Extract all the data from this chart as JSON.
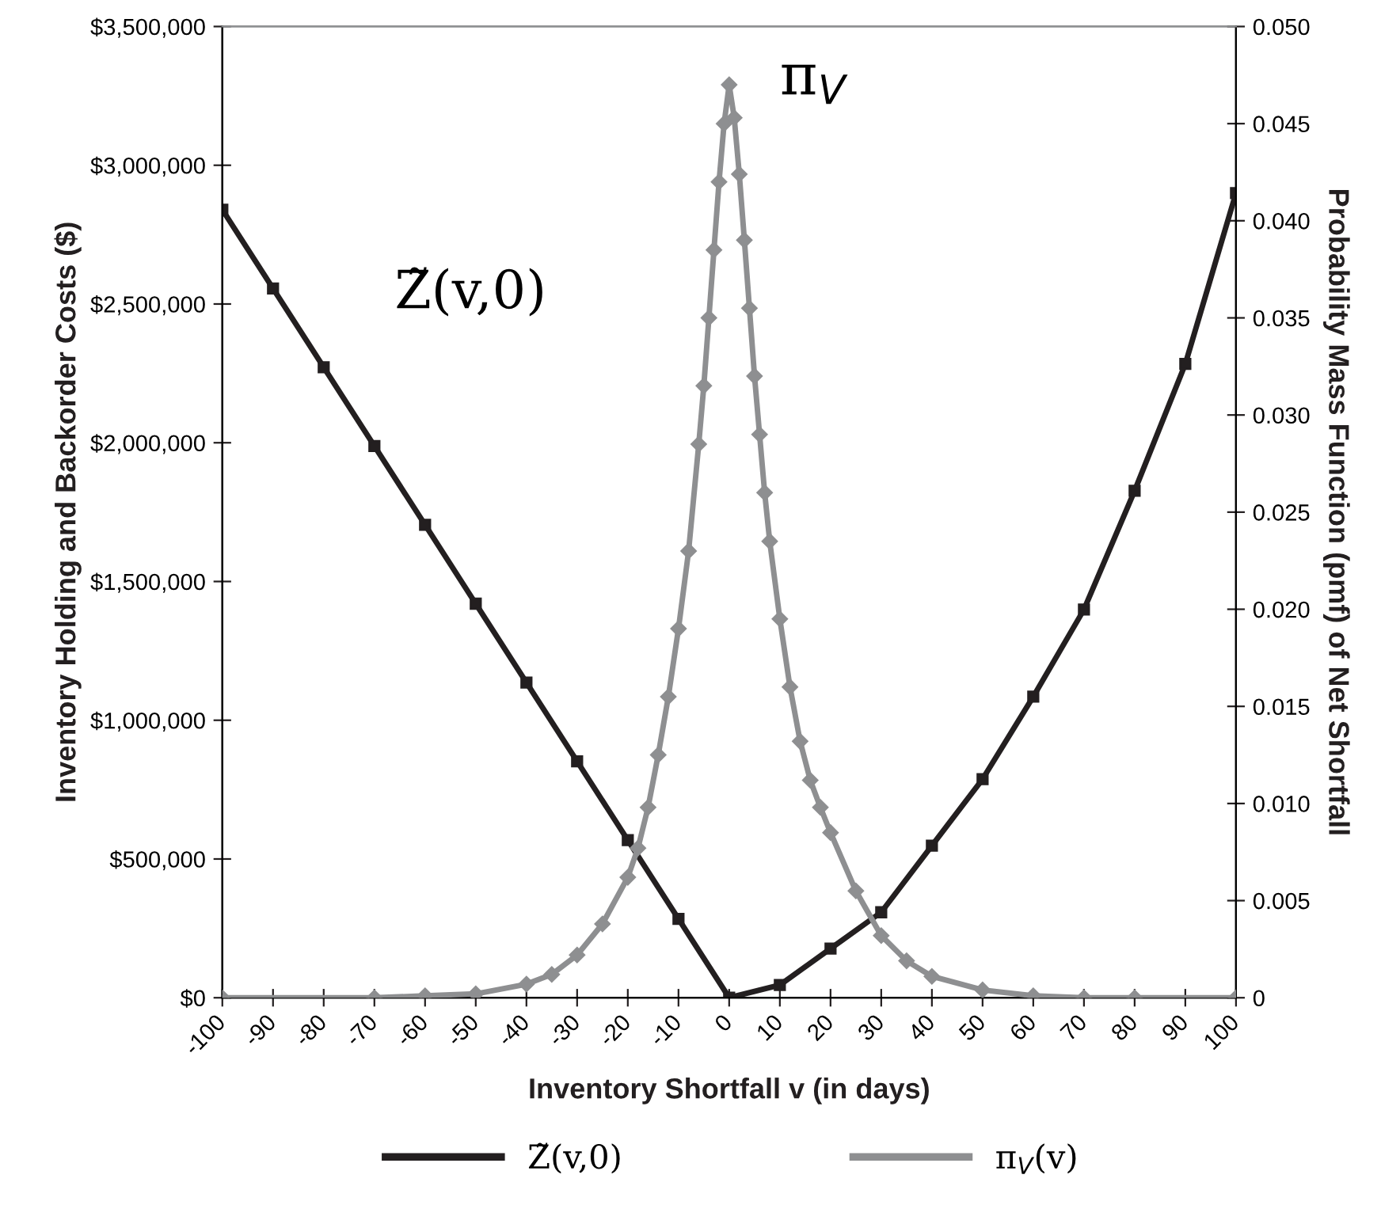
{
  "chart_data": {
    "type": "line",
    "xlabel": "Inventory Shortfall v (in days)",
    "ylabel": "Inventory Holding and Backorder Costs ($)",
    "y2label": "Probability Mass Function (pmf) of Net Shortfall",
    "xlim": [
      -100,
      100
    ],
    "xticks": [
      -100,
      -90,
      -80,
      -70,
      -60,
      -50,
      -40,
      -30,
      -20,
      -10,
      0,
      10,
      20,
      30,
      40,
      50,
      60,
      70,
      80,
      90,
      100
    ],
    "ylim": [
      0,
      3500000
    ],
    "yticks": [
      {
        "value": 0,
        "label": "$0"
      },
      {
        "value": 500000,
        "label": "$500,000"
      },
      {
        "value": 1000000,
        "label": "$1,000,000"
      },
      {
        "value": 1500000,
        "label": "$1,500,000"
      },
      {
        "value": 2000000,
        "label": "$2,000,000"
      },
      {
        "value": 2500000,
        "label": "$2,500,000"
      },
      {
        "value": 3000000,
        "label": "$3,000,000"
      },
      {
        "value": 3500000,
        "label": "$3,500,000"
      }
    ],
    "y2lim": [
      0,
      0.05
    ],
    "y2ticks": [
      0,
      {
        "value": 0.005,
        "label": "0.005"
      },
      {
        "value": 0.01,
        "label": "0.010"
      },
      {
        "value": 0.015,
        "label": "0.015"
      },
      {
        "value": 0.02,
        "label": "0.020"
      },
      {
        "value": 0.025,
        "label": "0.025"
      },
      {
        "value": 0.03,
        "label": "0.030"
      },
      {
        "value": 0.035,
        "label": "0.035"
      },
      {
        "value": 0.04,
        "label": "0.040"
      },
      {
        "value": 0.045,
        "label": "0.045"
      },
      {
        "value": 0.05,
        "label": "0.050"
      }
    ],
    "grid": false,
    "legend": "bottom",
    "annotations": [
      "Z̃(v,0)",
      "π$_{V}$"
    ],
    "series": [
      {
        "name": "Z̃(v,0)",
        "color": "#231f20",
        "marker": "square",
        "x": [
          -100,
          -90,
          -80,
          -70,
          -60,
          -50,
          -40,
          -30,
          -20,
          -10,
          0,
          10,
          20,
          30,
          40,
          50,
          60,
          70,
          80,
          90,
          100
        ],
        "values": [
          2840000,
          2556000,
          2272000,
          1988000,
          1704000,
          1420000,
          1136000,
          852000,
          568000,
          284000,
          0,
          46000,
          177000,
          308000,
          548000,
          788000,
          1085000,
          1399000,
          1827000,
          2284000,
          2900000
        ]
      },
      {
        "name": "π$_{V}$(v)",
        "color": "#8e8f91",
        "marker": "diamond",
        "axis": "y2",
        "x": [
          -100,
          -70,
          -60,
          -50,
          -40,
          -35,
          -30,
          -25,
          -20,
          -18,
          -16,
          -14,
          -12,
          -10,
          -8,
          -6,
          -5,
          -4,
          -3,
          -2,
          -1,
          0,
          1,
          2,
          3,
          4,
          5,
          6,
          7,
          8,
          10,
          12,
          14,
          16,
          18,
          20,
          25,
          30,
          35,
          40,
          50,
          60,
          70,
          80,
          100
        ],
        "values": [
          0,
          0,
          0.0001,
          0.0002,
          0.0007,
          0.0012,
          0.0022,
          0.0038,
          0.0062,
          0.0077,
          0.0098,
          0.0125,
          0.0155,
          0.019,
          0.023,
          0.0285,
          0.0315,
          0.035,
          0.0385,
          0.042,
          0.045,
          0.047,
          0.0453,
          0.0424,
          0.039,
          0.0355,
          0.032,
          0.029,
          0.026,
          0.0235,
          0.0195,
          0.016,
          0.0132,
          0.0112,
          0.0098,
          0.0085,
          0.0055,
          0.0032,
          0.0019,
          0.0011,
          0.0004,
          0.0001,
          0,
          0,
          0
        ]
      }
    ]
  }
}
